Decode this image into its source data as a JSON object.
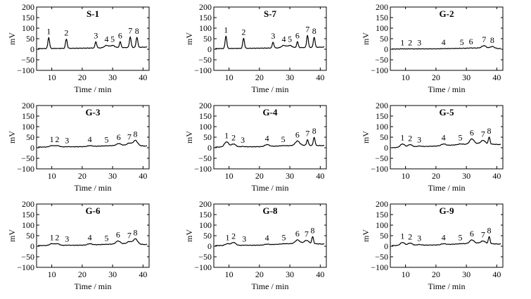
{
  "chart_data": [
    {
      "type": "line",
      "title": "S-1",
      "xlabel": "Time / min",
      "ylabel": "mV",
      "xlim": [
        5,
        42
      ],
      "ylim": [
        -100,
        200
      ],
      "xticks": [
        10,
        20,
        30,
        40
      ],
      "yticks": [
        -100,
        -50,
        0,
        50,
        100,
        150,
        200
      ],
      "peaks": [
        {
          "label": "1",
          "x": 9,
          "y": 55
        },
        {
          "label": "2",
          "x": 14.8,
          "y": 48
        },
        {
          "label": "3",
          "x": 24.5,
          "y": 35
        },
        {
          "label": "4",
          "x": 28,
          "y": 18
        },
        {
          "label": "5",
          "x": 30,
          "y": 18
        },
        {
          "label": "6",
          "x": 32.5,
          "y": 35
        },
        {
          "label": "7",
          "x": 35.8,
          "y": 58
        },
        {
          "label": "8",
          "x": 38,
          "y": 57
        }
      ],
      "baseline": [
        [
          5,
          3
        ],
        [
          20,
          5
        ],
        [
          34,
          8
        ],
        [
          41,
          10
        ]
      ]
    },
    {
      "type": "line",
      "title": "S-7",
      "xlabel": "Time / min",
      "ylabel": "mV",
      "xlim": [
        5,
        42
      ],
      "ylim": [
        -100,
        200
      ],
      "xticks": [
        10,
        20,
        30,
        40
      ],
      "yticks": [
        -100,
        -50,
        0,
        50,
        100,
        150,
        200
      ],
      "peaks": [
        {
          "label": "1",
          "x": 9,
          "y": 62
        },
        {
          "label": "2",
          "x": 14.8,
          "y": 52
        },
        {
          "label": "3",
          "x": 24.5,
          "y": 33
        },
        {
          "label": "4",
          "x": 28,
          "y": 18
        },
        {
          "label": "5",
          "x": 30,
          "y": 18
        },
        {
          "label": "6",
          "x": 32.5,
          "y": 35
        },
        {
          "label": "7",
          "x": 35.8,
          "y": 65
        },
        {
          "label": "8",
          "x": 38,
          "y": 57
        }
      ],
      "baseline": [
        [
          5,
          3
        ],
        [
          20,
          5
        ],
        [
          34,
          8
        ],
        [
          41,
          10
        ]
      ]
    },
    {
      "type": "line",
      "title": "G-2",
      "xlabel": "Time / min",
      "ylabel": "mV",
      "xlim": [
        5,
        42
      ],
      "ylim": [
        -100,
        200
      ],
      "xticks": [
        10,
        20,
        30,
        40
      ],
      "yticks": [
        -100,
        -50,
        0,
        50,
        100,
        150,
        200
      ],
      "peaks": [
        {
          "label": "1",
          "x": 9,
          "y": 2
        },
        {
          "label": "2",
          "x": 11.5,
          "y": 2
        },
        {
          "label": "3",
          "x": 14.5,
          "y": 2
        },
        {
          "label": "4",
          "x": 22.5,
          "y": 3
        },
        {
          "label": "5",
          "x": 28.5,
          "y": 4
        },
        {
          "label": "6",
          "x": 31.5,
          "y": 6
        },
        {
          "label": "7",
          "x": 35.8,
          "y": 17
        },
        {
          "label": "8",
          "x": 38.5,
          "y": 13
        }
      ],
      "baseline": [
        [
          5,
          1
        ],
        [
          20,
          2
        ],
        [
          34,
          6
        ],
        [
          41,
          3
        ]
      ]
    },
    {
      "type": "line",
      "title": "G-3",
      "xlabel": "Time / min",
      "ylabel": "mV",
      "xlim": [
        5,
        42
      ],
      "ylim": [
        -100,
        200
      ],
      "xticks": [
        10,
        20,
        30,
        40
      ],
      "yticks": [
        -100,
        -50,
        0,
        50,
        100,
        150,
        200
      ],
      "peaks": [
        {
          "label": "1",
          "x": 10,
          "y": 10
        },
        {
          "label": "2",
          "x": 11.8,
          "y": 10
        },
        {
          "label": "3",
          "x": 15,
          "y": 5
        },
        {
          "label": "4",
          "x": 22.5,
          "y": 10
        },
        {
          "label": "5",
          "x": 28,
          "y": 8
        },
        {
          "label": "6",
          "x": 32,
          "y": 20
        },
        {
          "label": "7",
          "x": 35.5,
          "y": 22
        },
        {
          "label": "8",
          "x": 37.5,
          "y": 35
        }
      ],
      "baseline": [
        [
          5,
          3
        ],
        [
          20,
          5
        ],
        [
          34,
          12
        ],
        [
          41,
          8
        ]
      ]
    },
    {
      "type": "line",
      "title": "G-4",
      "xlabel": "Time / min",
      "ylabel": "mV",
      "xlim": [
        5,
        42
      ],
      "ylim": [
        -100,
        200
      ],
      "xticks": [
        10,
        20,
        30,
        40
      ],
      "yticks": [
        -100,
        -50,
        0,
        50,
        100,
        150,
        200
      ],
      "peaks": [
        {
          "label": "1",
          "x": 9.2,
          "y": 28
        },
        {
          "label": "2",
          "x": 11.5,
          "y": 18
        },
        {
          "label": "3",
          "x": 14.5,
          "y": 6
        },
        {
          "label": "4",
          "x": 22.5,
          "y": 15
        },
        {
          "label": "5",
          "x": 27.8,
          "y": 10
        },
        {
          "label": "6",
          "x": 32.5,
          "y": 32
        },
        {
          "label": "7",
          "x": 35.8,
          "y": 38
        },
        {
          "label": "8",
          "x": 38,
          "y": 50
        }
      ],
      "baseline": [
        [
          5,
          3
        ],
        [
          20,
          5
        ],
        [
          34,
          12
        ],
        [
          41,
          10
        ]
      ]
    },
    {
      "type": "line",
      "title": "G-5",
      "xlabel": "Time / min",
      "ylabel": "mV",
      "xlim": [
        5,
        42
      ],
      "ylim": [
        -100,
        200
      ],
      "xticks": [
        10,
        20,
        30,
        40
      ],
      "yticks": [
        -100,
        -50,
        0,
        50,
        100,
        150,
        200
      ],
      "peaks": [
        {
          "label": "1",
          "x": 9,
          "y": 18
        },
        {
          "label": "2",
          "x": 11.5,
          "y": 15
        },
        {
          "label": "3",
          "x": 14.5,
          "y": 8
        },
        {
          "label": "4",
          "x": 22.5,
          "y": 18
        },
        {
          "label": "5",
          "x": 28,
          "y": 18
        },
        {
          "label": "6",
          "x": 31.8,
          "y": 42
        },
        {
          "label": "7",
          "x": 35.5,
          "y": 35
        },
        {
          "label": "8",
          "x": 37.5,
          "y": 50
        }
      ],
      "baseline": [
        [
          5,
          0
        ],
        [
          20,
          8
        ],
        [
          34,
          20
        ],
        [
          41,
          15
        ]
      ]
    },
    {
      "type": "line",
      "title": "G-6",
      "xlabel": "Time / min",
      "ylabel": "mV",
      "xlim": [
        5,
        42
      ],
      "ylim": [
        -100,
        200
      ],
      "xticks": [
        10,
        20,
        30,
        40
      ],
      "yticks": [
        -100,
        -50,
        0,
        50,
        100,
        150,
        200
      ],
      "peaks": [
        {
          "label": "1",
          "x": 10,
          "y": 12
        },
        {
          "label": "2",
          "x": 11.8,
          "y": 12
        },
        {
          "label": "3",
          "x": 15,
          "y": 5
        },
        {
          "label": "4",
          "x": 22.5,
          "y": 12
        },
        {
          "label": "5",
          "x": 28,
          "y": 8
        },
        {
          "label": "6",
          "x": 31.8,
          "y": 25
        },
        {
          "label": "7",
          "x": 35.5,
          "y": 22
        },
        {
          "label": "8",
          "x": 37.5,
          "y": 35
        }
      ],
      "baseline": [
        [
          5,
          3
        ],
        [
          20,
          5
        ],
        [
          34,
          12
        ],
        [
          41,
          8
        ]
      ]
    },
    {
      "type": "line",
      "title": "G-8",
      "xlabel": "Time / min",
      "ylabel": "mV",
      "xlim": [
        5,
        42
      ],
      "ylim": [
        -100,
        200
      ],
      "xticks": [
        10,
        20,
        30,
        40
      ],
      "yticks": [
        -100,
        -50,
        0,
        50,
        100,
        150,
        200
      ],
      "peaks": [
        {
          "label": "1",
          "x": 9.5,
          "y": 12
        },
        {
          "label": "2",
          "x": 11.5,
          "y": 18
        },
        {
          "label": "3",
          "x": 15,
          "y": 5
        },
        {
          "label": "4",
          "x": 22.5,
          "y": 10
        },
        {
          "label": "5",
          "x": 28,
          "y": 12
        },
        {
          "label": "6",
          "x": 32.5,
          "y": 30
        },
        {
          "label": "7",
          "x": 35.5,
          "y": 28
        },
        {
          "label": "8",
          "x": 37.5,
          "y": 45
        }
      ],
      "baseline": [
        [
          5,
          3
        ],
        [
          20,
          5
        ],
        [
          34,
          15
        ],
        [
          41,
          10
        ]
      ]
    },
    {
      "type": "line",
      "title": "G-9",
      "xlabel": "Time / min",
      "ylabel": "mV",
      "xlim": [
        5,
        42
      ],
      "ylim": [
        -100,
        200
      ],
      "xticks": [
        10,
        20,
        30,
        40
      ],
      "yticks": [
        -100,
        -50,
        0,
        50,
        100,
        150,
        200
      ],
      "peaks": [
        {
          "label": "1",
          "x": 9,
          "y": 18
        },
        {
          "label": "2",
          "x": 11.5,
          "y": 15
        },
        {
          "label": "3",
          "x": 14.5,
          "y": 8
        },
        {
          "label": "4",
          "x": 22.5,
          "y": 12
        },
        {
          "label": "5",
          "x": 28,
          "y": 12
        },
        {
          "label": "6",
          "x": 31.8,
          "y": 30
        },
        {
          "label": "7",
          "x": 35.5,
          "y": 25
        },
        {
          "label": "8",
          "x": 37.5,
          "y": 45
        }
      ],
      "baseline": [
        [
          5,
          3
        ],
        [
          20,
          6
        ],
        [
          34,
          15
        ],
        [
          41,
          10
        ]
      ]
    }
  ]
}
